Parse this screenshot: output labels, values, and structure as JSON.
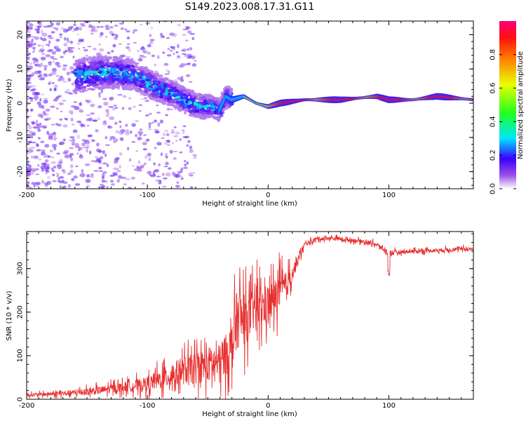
{
  "title": "S149.2023.008.17.31.G11",
  "chart_data": [
    {
      "type": "heatmap",
      "xlabel": "Height of straight line (km)",
      "ylabel": "Frequency (Hz)",
      "xlim": [
        -200,
        170
      ],
      "ylim": [
        -25,
        24
      ],
      "xticks": [
        -200,
        -100,
        0,
        100
      ],
      "yticks": [
        -20,
        -10,
        0,
        10,
        20
      ],
      "colorbar": {
        "label": "Normalized spectral amplitude",
        "range": [
          0,
          1
        ],
        "ticks": [
          "0.0",
          "0.2",
          "0.4",
          "0.6",
          "0.8"
        ]
      },
      "ridge": {
        "x": [
          -155,
          -140,
          -125,
          -110,
          -95,
          -80,
          -65,
          -55,
          -45,
          -40,
          -35,
          -30,
          -20,
          -10,
          0,
          10,
          30,
          60,
          90,
          100,
          120,
          140,
          170
        ],
        "frequency": [
          8,
          9,
          9,
          8,
          5,
          3,
          0,
          -1,
          -1,
          -2,
          2,
          1,
          2,
          0,
          -1,
          0,
          1,
          1,
          2,
          1,
          1,
          2,
          1
        ]
      }
    },
    {
      "type": "line",
      "xlabel": "Height of straight line (km)",
      "ylabel": "SNR (10 * v/v)",
      "xlim": [
        -200,
        170
      ],
      "ylim": [
        0,
        385
      ],
      "xticks": [
        -200,
        -100,
        0,
        100
      ],
      "yticks": [
        0,
        100,
        200,
        300
      ],
      "color": "#e83030",
      "series": [
        {
          "x": [
            -200,
            -180,
            -160,
            -140,
            -120,
            -100,
            -90,
            -80,
            -70,
            -60,
            -50,
            -40,
            -30,
            -25,
            -20,
            -15,
            -10,
            -5,
            0,
            5,
            10,
            15,
            20,
            25,
            30,
            40,
            50,
            60,
            70,
            80,
            90,
            95,
            100,
            110,
            120,
            140,
            160,
            170
          ],
          "y": [
            10,
            12,
            15,
            20,
            28,
            35,
            45,
            55,
            65,
            70,
            80,
            85,
            120,
            190,
            180,
            190,
            220,
            210,
            220,
            230,
            250,
            260,
            290,
            320,
            355,
            368,
            370,
            368,
            365,
            362,
            355,
            345,
            335,
            338,
            340,
            342,
            345,
            345
          ],
          "spread": [
            8,
            10,
            15,
            20,
            25,
            35,
            50,
            60,
            70,
            80,
            90,
            90,
            120,
            160,
            130,
            110,
            120,
            110,
            100,
            100,
            90,
            70,
            40,
            25,
            12,
            10,
            10,
            10,
            10,
            10,
            10,
            12,
            15,
            10,
            10,
            10,
            10,
            10
          ]
        }
      ]
    }
  ]
}
